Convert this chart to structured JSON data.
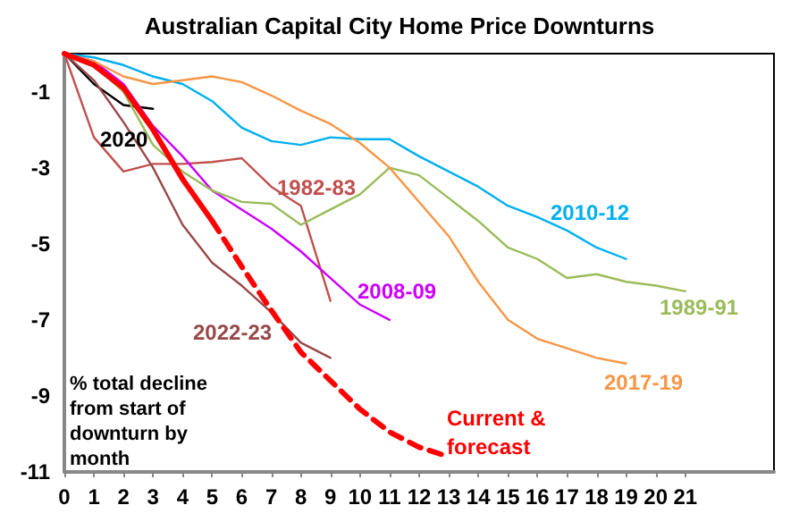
{
  "chart_data": {
    "type": "line",
    "title": "Australian Capital City Home Price Downturns",
    "annotations": [
      "% total decline from start of downturn by month"
    ],
    "xlim": [
      0,
      24
    ],
    "xticks": [
      0,
      1,
      2,
      3,
      4,
      5,
      6,
      7,
      8,
      9,
      10,
      11,
      12,
      13,
      14,
      15,
      16,
      17,
      18,
      19,
      20,
      21
    ],
    "ylim": [
      -11,
      0
    ],
    "yticks": [
      -11,
      -9,
      -7,
      -5,
      -3,
      -1
    ],
    "grid": false,
    "legend": false,
    "marker": "none",
    "series": [
      {
        "color": "#ff0000",
        "line_style": "solid",
        "x": [
          0,
          1,
          2,
          3,
          4,
          5
        ],
        "values": [
          0,
          -0.3,
          -0.9,
          -2.0,
          -3.3,
          -4.4
        ]
      },
      {
        "name": "Current & forecast",
        "color": "#ff0000",
        "line_style": "dashed",
        "x": [
          5,
          6,
          7,
          8,
          9,
          10,
          11,
          12,
          13
        ],
        "values": [
          -4.4,
          -5.6,
          -6.75,
          -7.85,
          -8.6,
          -9.35,
          -9.95,
          -10.35,
          -10.6
        ]
      },
      {
        "name": "2020",
        "color": "#000000",
        "x": [
          0,
          1,
          2,
          3
        ],
        "values": [
          0,
          -0.8,
          -1.35,
          -1.45
        ]
      },
      {
        "name": "1982-83",
        "color": "#c0504d",
        "x": [
          0,
          1,
          2,
          3,
          4,
          5,
          6,
          7,
          8,
          9
        ],
        "values": [
          0,
          -2.2,
          -3.1,
          -2.9,
          -2.9,
          -2.85,
          -2.75,
          -3.5,
          -4.0,
          -6.5
        ]
      },
      {
        "name": "2022-23",
        "color": "#984848",
        "x": [
          0,
          1,
          2,
          3,
          4,
          5,
          6,
          7,
          8,
          9
        ],
        "values": [
          0,
          -0.7,
          -1.8,
          -3.0,
          -4.5,
          -5.5,
          -6.1,
          -6.8,
          -7.6,
          -8.0
        ]
      },
      {
        "name": "2008-09",
        "color": "#cc00ff",
        "x": [
          0,
          1,
          2,
          3,
          4,
          5,
          6,
          7,
          8,
          9,
          10,
          11
        ],
        "values": [
          0,
          -0.2,
          -0.8,
          -1.9,
          -2.7,
          -3.6,
          -4.1,
          -4.6,
          -5.2,
          -5.9,
          -6.6,
          -7.0
        ]
      },
      {
        "name": "1989-91",
        "color": "#9bbb59",
        "x": [
          0,
          1,
          2,
          3,
          4,
          5,
          6,
          7,
          8,
          9,
          10,
          11,
          12,
          13,
          14,
          15,
          16,
          17,
          18,
          19,
          20,
          21
        ],
        "values": [
          0,
          -0.3,
          -1.0,
          -2.4,
          -3.1,
          -3.6,
          -3.9,
          -3.95,
          -4.5,
          -4.1,
          -3.7,
          -3.0,
          -3.2,
          -3.8,
          -4.4,
          -5.1,
          -5.4,
          -5.9,
          -5.8,
          -6.0,
          -6.1,
          -6.25
        ]
      },
      {
        "name": "2010-12",
        "color": "#00b0f0",
        "x": [
          0,
          1,
          2,
          3,
          4,
          5,
          6,
          7,
          8,
          9,
          10,
          11,
          12,
          13,
          14,
          15,
          16,
          17,
          18,
          19
        ],
        "values": [
          0,
          -0.1,
          -0.3,
          -0.6,
          -0.8,
          -1.25,
          -1.95,
          -2.3,
          -2.4,
          -2.2,
          -2.25,
          -2.25,
          -2.7,
          -3.1,
          -3.5,
          -4.0,
          -4.3,
          -4.65,
          -5.1,
          -5.4
        ]
      },
      {
        "name": "2017-19",
        "color": "#f79646",
        "x": [
          0,
          1,
          2,
          3,
          4,
          5,
          6,
          7,
          8,
          9,
          10,
          11,
          12,
          13,
          14,
          15,
          16,
          17,
          18,
          19
        ],
        "values": [
          0,
          -0.2,
          -0.6,
          -0.8,
          -0.7,
          -0.6,
          -0.75,
          -1.1,
          -1.5,
          -1.85,
          -2.35,
          -3.0,
          -3.9,
          -4.8,
          -6.0,
          -7.0,
          -7.5,
          -7.75,
          -8.0,
          -8.15
        ]
      }
    ]
  }
}
